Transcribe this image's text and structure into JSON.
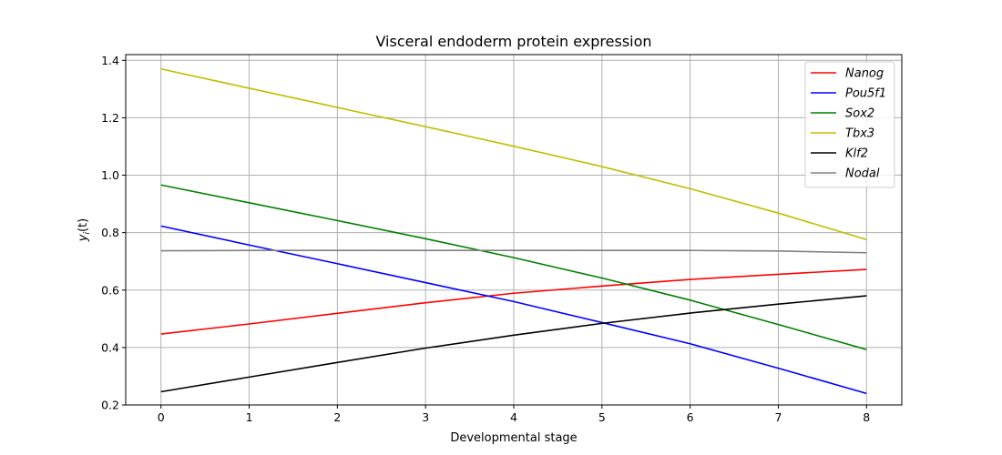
{
  "chart_data": {
    "type": "line",
    "title": "Visceral endoderm protein expression",
    "xlabel": "Developmental stage",
    "ylabel_base": "y",
    "ylabel_sub": "i",
    "ylabel_tail": "(t)",
    "xlim": [
      -0.4,
      8.4
    ],
    "ylim": [
      0.2,
      1.42
    ],
    "xticks": [
      0,
      1,
      2,
      3,
      4,
      5,
      6,
      7,
      8
    ],
    "yticks": [
      0.2,
      0.4,
      0.6,
      0.8,
      1.0,
      1.2,
      1.4
    ],
    "ytick_labels": [
      "0.2",
      "0.4",
      "0.6",
      "0.8",
      "1.0",
      "1.2",
      "1.4"
    ],
    "grid": true,
    "legend_position": "top-right",
    "x": [
      0,
      1,
      2,
      3,
      4,
      5,
      6,
      7,
      8
    ],
    "series": [
      {
        "name": "Nanog",
        "color": "#ff0000",
        "values": [
          0.447,
          0.482,
          0.519,
          0.556,
          0.589,
          0.614,
          0.637,
          0.655,
          0.672
        ]
      },
      {
        "name": "Pou5f1",
        "color": "#0000ff",
        "values": [
          0.823,
          0.757,
          0.692,
          0.626,
          0.56,
          0.487,
          0.413,
          0.328,
          0.24
        ]
      },
      {
        "name": "Sox2",
        "color": "#008000",
        "values": [
          0.966,
          0.904,
          0.842,
          0.779,
          0.713,
          0.642,
          0.565,
          0.48,
          0.393
        ]
      },
      {
        "name": "Tbx3",
        "color": "#bfbf00",
        "values": [
          1.37,
          1.303,
          1.236,
          1.169,
          1.101,
          1.03,
          0.953,
          0.868,
          0.776
        ]
      },
      {
        "name": "Klf2",
        "color": "#000000",
        "values": [
          0.246,
          0.297,
          0.348,
          0.398,
          0.443,
          0.484,
          0.52,
          0.551,
          0.58
        ]
      },
      {
        "name": "Nodal",
        "color": "#808080",
        "values": [
          0.737,
          0.738,
          0.738,
          0.738,
          0.738,
          0.738,
          0.738,
          0.736,
          0.73
        ]
      }
    ]
  }
}
